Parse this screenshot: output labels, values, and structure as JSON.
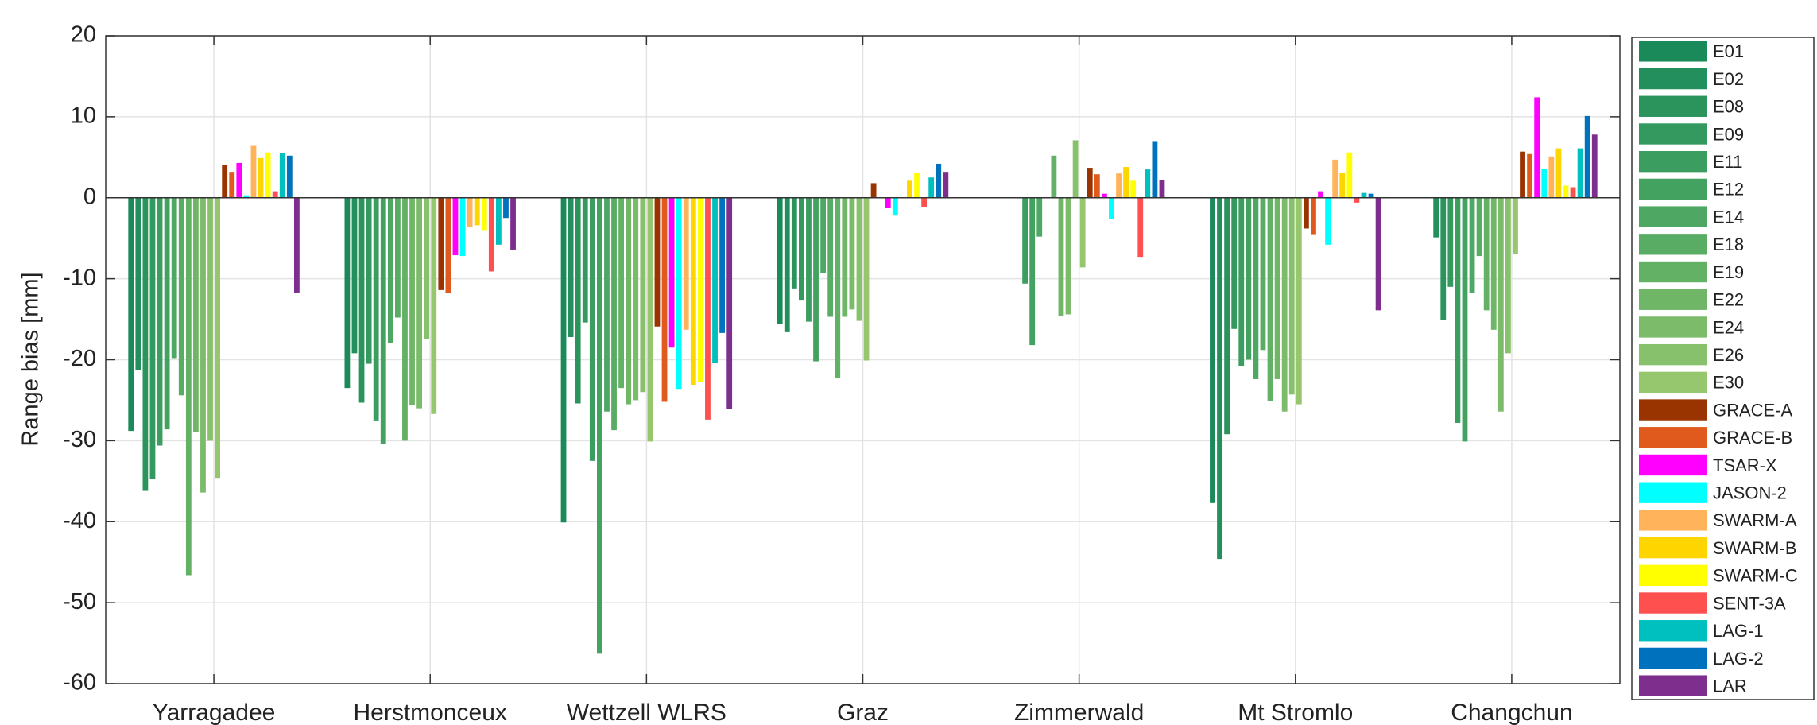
{
  "chart_data": {
    "type": "bar",
    "y_label": "Range bias [mm]",
    "categories": [
      "Yarragadee",
      "Herstmonceux",
      "Wettzell WLRS",
      "Graz",
      "Zimmerwald",
      "Mt Stromlo",
      "Changchun"
    ],
    "ylim": [
      -60,
      20
    ],
    "yticks": [
      -60,
      -50,
      -40,
      -30,
      -20,
      -10,
      0,
      10,
      20
    ],
    "grid": true,
    "legend": "outside-right",
    "series": [
      {
        "name": "E01",
        "color": "#1b8a5a",
        "values": [
          -28.8,
          -23.5,
          -40.1,
          -15.6,
          null,
          -37.7,
          null
        ]
      },
      {
        "name": "E02",
        "color": "#238f5c",
        "values": [
          -21.3,
          -19.2,
          -17.2,
          -16.6,
          null,
          -44.6,
          -4.9
        ]
      },
      {
        "name": "E08",
        "color": "#2b945d",
        "values": [
          -36.2,
          -25.3,
          -25.4,
          -11.2,
          null,
          -29.2,
          -15.1
        ]
      },
      {
        "name": "E09",
        "color": "#33995e",
        "values": [
          -34.7,
          -20.5,
          -15.4,
          -12.7,
          null,
          -16.2,
          -11.0
        ]
      },
      {
        "name": "E11",
        "color": "#3b9d5f",
        "values": [
          -30.6,
          -27.5,
          -32.5,
          -15.3,
          -10.6,
          -20.8,
          -27.8
        ]
      },
      {
        "name": "E12",
        "color": "#44a260",
        "values": [
          -28.6,
          -30.4,
          -56.3,
          -20.2,
          -18.2,
          -20.0,
          -30.1
        ]
      },
      {
        "name": "E14",
        "color": "#4ea762",
        "values": [
          -19.8,
          -17.9,
          -26.4,
          -9.3,
          -4.8,
          -22.4,
          -11.8
        ]
      },
      {
        "name": "E18",
        "color": "#58ac63",
        "values": [
          -24.4,
          -14.8,
          -28.7,
          -14.7,
          null,
          -18.8,
          -7.2
        ]
      },
      {
        "name": "E19",
        "color": "#63b165",
        "values": [
          -46.6,
          -30.0,
          -23.5,
          -22.3,
          5.2,
          -25.1,
          -13.9
        ]
      },
      {
        "name": "E22",
        "color": "#6fb667",
        "values": [
          -28.9,
          -25.6,
          -25.5,
          -14.7,
          -14.6,
          -22.4,
          -16.3
        ]
      },
      {
        "name": "E24",
        "color": "#7bbb69",
        "values": [
          -36.4,
          -26.0,
          -25.0,
          -13.8,
          -14.4,
          -26.4,
          -26.4
        ]
      },
      {
        "name": "E26",
        "color": "#88c16b",
        "values": [
          -30.0,
          -17.4,
          -24.0,
          -15.2,
          7.1,
          -24.3,
          -19.2
        ]
      },
      {
        "name": "E30",
        "color": "#96c76e",
        "values": [
          -34.6,
          -26.7,
          -30.1,
          -20.1,
          -8.6,
          -25.5,
          -6.9
        ]
      },
      {
        "name": "GRACE-A",
        "color": "#993300",
        "values": [
          4.1,
          -11.4,
          -15.9,
          1.8,
          3.7,
          -3.8,
          5.7
        ]
      },
      {
        "name": "GRACE-B",
        "color": "#e05a1e",
        "values": [
          3.2,
          -11.8,
          -25.2,
          null,
          2.9,
          -4.5,
          5.4
        ]
      },
      {
        "name": "TSAR-X",
        "color": "#ff00ff",
        "values": [
          4.3,
          -7.1,
          -18.5,
          -1.3,
          0.5,
          0.8,
          12.4
        ]
      },
      {
        "name": "JASON-2",
        "color": "#00ffff",
        "values": [
          0.3,
          -7.2,
          -23.6,
          -2.2,
          -2.6,
          -5.8,
          3.6
        ]
      },
      {
        "name": "SWARM-A",
        "color": "#ffb35a",
        "values": [
          6.4,
          -3.6,
          -16.3,
          null,
          3.0,
          4.7,
          5.1
        ]
      },
      {
        "name": "SWARM-B",
        "color": "#ffd500",
        "values": [
          4.9,
          -3.4,
          -23.1,
          2.1,
          3.8,
          3.1,
          6.1
        ]
      },
      {
        "name": "SWARM-C",
        "color": "#ffff00",
        "values": [
          5.6,
          -4.0,
          -22.7,
          3.1,
          2.1,
          5.6,
          1.5
        ]
      },
      {
        "name": "SENT-3A",
        "color": "#ff5050",
        "values": [
          0.8,
          -9.1,
          -27.4,
          -1.1,
          -7.3,
          -0.6,
          1.3
        ]
      },
      {
        "name": "LAG-1",
        "color": "#00bfbf",
        "values": [
          5.5,
          -5.8,
          -20.4,
          2.5,
          3.5,
          0.6,
          6.1
        ]
      },
      {
        "name": "LAG-2",
        "color": "#0072bd",
        "values": [
          5.2,
          -2.5,
          -16.7,
          4.2,
          7.0,
          0.5,
          10.1
        ]
      },
      {
        "name": "LAR",
        "color": "#7e2f8e",
        "values": [
          -11.7,
          -6.4,
          -26.1,
          3.2,
          2.2,
          -13.9,
          7.8
        ]
      }
    ]
  }
}
